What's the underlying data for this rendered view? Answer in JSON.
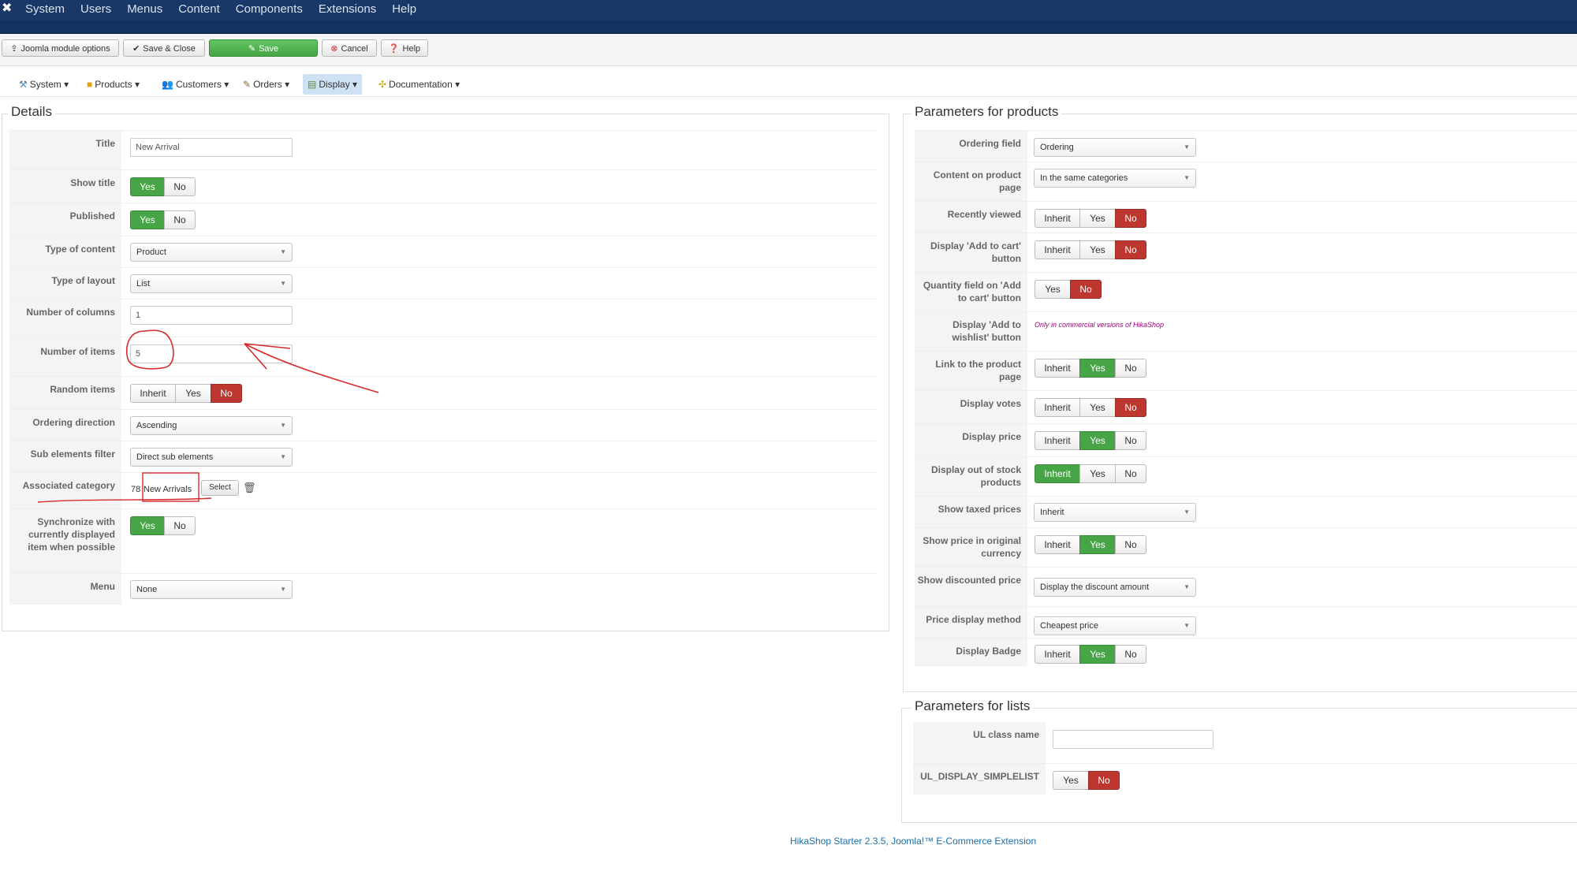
{
  "topbar": {
    "menu": [
      "System",
      "Users",
      "Menus",
      "Content",
      "Components",
      "Extensions",
      "Help"
    ]
  },
  "toolbar": {
    "module_options": "Joomla module options",
    "save_close": "Save & Close",
    "save": "Save",
    "cancel": "Cancel",
    "help": "Help"
  },
  "submenu": [
    "System",
    "Products",
    "Customers",
    "Orders",
    "Display",
    "Documentation"
  ],
  "details": {
    "legend": "Details",
    "title_label": "Title",
    "title_value": "New Arrival",
    "show_title_label": "Show title",
    "published_label": "Published",
    "type_content_label": "Type of content",
    "type_content_value": "Product",
    "type_layout_label": "Type of layout",
    "type_layout_value": "List",
    "columns_label": "Number of columns",
    "columns_value": "1",
    "items_label": "Number of items",
    "items_value": "5",
    "random_label": "Random items",
    "ordering_dir_label": "Ordering direction",
    "ordering_dir_value": "Ascending",
    "sub_filter_label": "Sub elements filter",
    "sub_filter_value": "Direct sub elements",
    "assoc_cat_label": "Associated category",
    "assoc_cat_id": "78",
    "assoc_cat_name": "New Arrivals",
    "select_btn": "Select",
    "sync_label": "Synchronize with currently displayed item when possible",
    "menu_label": "Menu",
    "menu_value": "None"
  },
  "buttons": {
    "yes": "Yes",
    "no": "No",
    "inherit": "Inherit"
  },
  "products": {
    "legend": "Parameters for products",
    "ordering_field_label": "Ordering field",
    "ordering_field_value": "Ordering",
    "content_page_label": "Content on product page",
    "content_page_value": "In the same categories",
    "recently_viewed_label": "Recently viewed",
    "add_cart_label": "Display 'Add to cart' button",
    "qty_field_label": "Quantity field on 'Add to cart' button",
    "wishlist_label": "Display 'Add to wishlist' button",
    "wishlist_note": "Only in commercial versions of HikaShop",
    "link_page_label": "Link to the product page",
    "votes_label": "Display votes",
    "price_label": "Display price",
    "out_stock_label": "Display out of stock products",
    "taxed_label": "Show taxed prices",
    "taxed_value": "Inherit",
    "orig_currency_label": "Show price in original currency",
    "discounted_label": "Show discounted price",
    "discounted_value": "Display the discount amount",
    "price_method_label": "Price display method",
    "price_method_value": "Cheapest price",
    "badge_label": "Display Badge"
  },
  "lists": {
    "legend": "Parameters for lists",
    "ul_class_label": "UL class name",
    "ul_class_value": "",
    "simplelist_label": "UL_DISPLAY_SIMPLELIST"
  },
  "footer": "HikaShop Starter 2.3.5, Joomla!™ E-Commerce Extension",
  "colors": {
    "active_green": "#47a447",
    "active_red": "#bd362f",
    "topbar": "#1a3867"
  }
}
